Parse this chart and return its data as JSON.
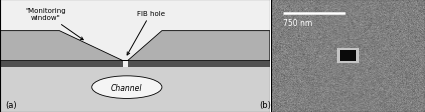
{
  "fig_width": 4.25,
  "fig_height": 1.13,
  "dpi": 100,
  "bg_color": "#ffffff",
  "panel_a": {
    "label": "(a)",
    "glass_top_color": "#b0b0b0",
    "glass_top_dark_color": "#909090",
    "silicon_color": "#505050",
    "glass_bottom_color": "#d0d0d0",
    "channel_fill": "#f5f5f5",
    "channel_label": "Channel",
    "monitor_window_label": "\"Monitoring\nwindow\"",
    "fib_hole_label": "FIB hole"
  },
  "panel_b": {
    "label": "(b)",
    "sem_mean": 0.5,
    "sem_std": 0.04,
    "scalebar_label": "750 nm",
    "hole_dark": "#0a0a0a",
    "hole_light_border": "#c5c5c5"
  }
}
